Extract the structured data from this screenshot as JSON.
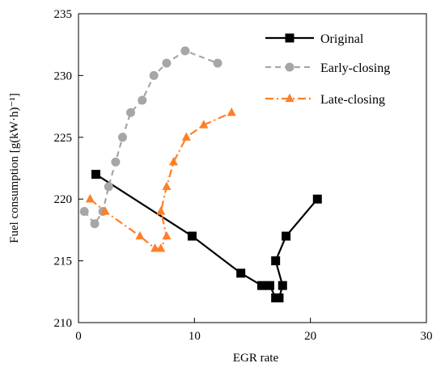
{
  "chart_data": {
    "type": "line",
    "xlabel": "EGR  rate",
    "ylabel": "Fuel consumption [g(kW·h)⁻¹]",
    "xlim": [
      0,
      30
    ],
    "ylim": [
      210,
      235
    ],
    "x_ticks": [
      0,
      10,
      20,
      30
    ],
    "y_ticks": [
      210,
      215,
      220,
      225,
      230,
      235
    ],
    "grid": false,
    "legend_position": "top-right",
    "series": [
      {
        "name": "Original",
        "color": "#000000",
        "line_style": "solid",
        "marker": "square",
        "points": [
          [
            1.5,
            222
          ],
          [
            9.8,
            217
          ],
          [
            14.0,
            214
          ],
          [
            15.8,
            213
          ],
          [
            16.5,
            213
          ],
          [
            17.0,
            212
          ],
          [
            17.3,
            212
          ],
          [
            17.6,
            213
          ],
          [
            17.0,
            215
          ],
          [
            17.9,
            217
          ],
          [
            20.6,
            220
          ]
        ]
      },
      {
        "name": "Early-closing",
        "color": "#a6a6a6",
        "line_style": "dashed",
        "marker": "circle",
        "points": [
          [
            0.5,
            219
          ],
          [
            1.4,
            218
          ],
          [
            2.1,
            219
          ],
          [
            2.6,
            221
          ],
          [
            3.2,
            223
          ],
          [
            3.8,
            225
          ],
          [
            4.5,
            227
          ],
          [
            5.5,
            228
          ],
          [
            6.5,
            230
          ],
          [
            7.6,
            231
          ],
          [
            9.2,
            232
          ],
          [
            12.0,
            231
          ]
        ]
      },
      {
        "name": "Late-closing",
        "color": "#ff7f27",
        "line_style": "dashdot",
        "marker": "triangle",
        "points": [
          [
            1.0,
            220
          ],
          [
            2.3,
            219
          ],
          [
            5.3,
            217
          ],
          [
            6.6,
            216
          ],
          [
            7.1,
            216
          ],
          [
            7.6,
            217
          ],
          [
            7.1,
            219
          ],
          [
            7.6,
            221
          ],
          [
            8.2,
            223
          ],
          [
            9.3,
            225
          ],
          [
            10.8,
            226
          ],
          [
            13.2,
            227
          ]
        ]
      }
    ]
  }
}
